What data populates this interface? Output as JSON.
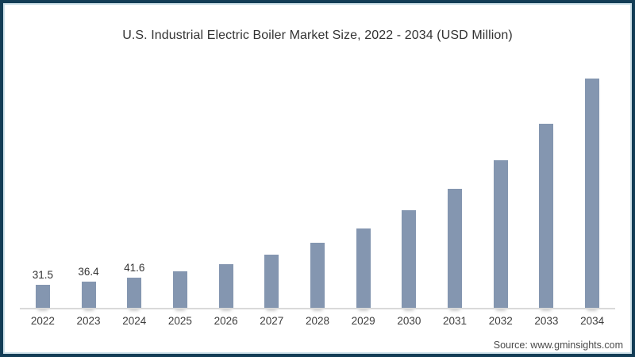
{
  "colors": {
    "bar": "#8496B0",
    "frame_border": "#133d56",
    "frame_inner_line": "#cfe2ea",
    "axis_line": "#d9d9d9",
    "title_text": "#333333",
    "tick_text": "#3d3d3d"
  },
  "source_label": "Source: www.gminsights.com",
  "chart_data": {
    "type": "bar",
    "title": "U.S. Industrial Electric Boiler Market Size, 2022 - 2034 (USD Million)",
    "unit": "USD Million",
    "categories": [
      "2022",
      "2023",
      "2024",
      "2025",
      "2026",
      "2027",
      "2028",
      "2029",
      "2030",
      "2031",
      "2032",
      "2033",
      "2034"
    ],
    "values": [
      31.5,
      36.4,
      41.6,
      50,
      60,
      72,
      88,
      107,
      132,
      160,
      199,
      247,
      308
    ],
    "data_labels": [
      "31.5",
      "36.4",
      "41.6",
      "",
      "",
      "",
      "",
      "",
      "",
      "",
      "",
      "",
      ""
    ],
    "xlabel": "",
    "ylabel": "",
    "ylim": [
      0,
      320
    ],
    "grid": false,
    "legend": false,
    "y_axis_visible": false,
    "source": "Source: www.gminsights.com"
  }
}
